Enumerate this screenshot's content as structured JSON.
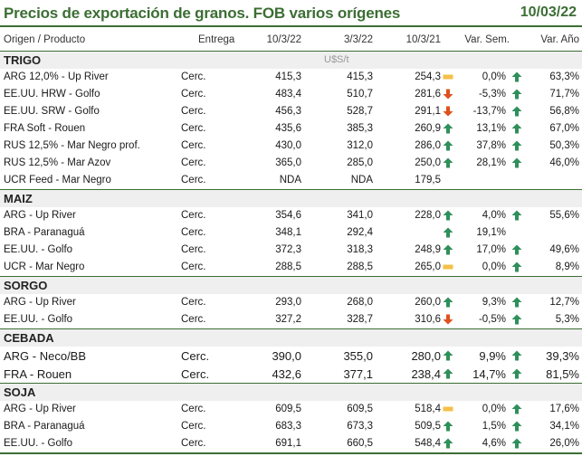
{
  "header": {
    "title": "Precios de exportación de granos. FOB varios orígenes",
    "date": "10/03/22"
  },
  "columns": {
    "origen": "Origen / Producto",
    "entrega": "Entrega",
    "c1": "10/3/22",
    "c2": "3/3/22",
    "c3": "10/3/21",
    "var_sem": "Var. Sem.",
    "var_anio": "Var. Año"
  },
  "colors": {
    "green": "#3c6e34",
    "up": "#2f8f5a",
    "down": "#e0501c",
    "flat": "#f5c04a"
  },
  "sections": [
    {
      "name": "TRIGO",
      "unit": "U$S/t",
      "rows": [
        {
          "name": "ARG 12,0% - Up River",
          "entrega": "Cerc.",
          "v1": "415,3",
          "v2": "415,3",
          "v3": "254,3",
          "i1": "flat",
          "s": "0,0%",
          "i2": "up",
          "a": "63,3%"
        },
        {
          "name": "EE.UU. HRW - Golfo",
          "entrega": "Cerc.",
          "v1": "483,4",
          "v2": "510,7",
          "v3": "281,6",
          "i1": "down",
          "s": "-5,3%",
          "i2": "up",
          "a": "71,7%"
        },
        {
          "name": "EE.UU. SRW - Golfo",
          "entrega": "Cerc.",
          "v1": "456,3",
          "v2": "528,7",
          "v3": "291,1",
          "i1": "down",
          "s": "-13,7%",
          "i2": "up",
          "a": "56,8%"
        },
        {
          "name": "FRA Soft - Rouen",
          "entrega": "Cerc.",
          "v1": "435,6",
          "v2": "385,3",
          "v3": "260,9",
          "i1": "up",
          "s": "13,1%",
          "i2": "up",
          "a": "67,0%"
        },
        {
          "name": "RUS 12,5% - Mar Negro prof.",
          "entrega": "Cerc.",
          "v1": "430,0",
          "v2": "312,0",
          "v3": "286,0",
          "i1": "up",
          "s": "37,8%",
          "i2": "up",
          "a": "50,3%"
        },
        {
          "name": "RUS 12,5% - Mar Azov",
          "entrega": "Cerc.",
          "v1": "365,0",
          "v2": "285,0",
          "v3": "250,0",
          "i1": "up",
          "s": "28,1%",
          "i2": "up",
          "a": "46,0%"
        },
        {
          "name": "UCR Feed - Mar Negro",
          "entrega": "Cerc.",
          "v1": "NDA",
          "v2": "NDA",
          "v3": "179,5",
          "i1": "",
          "s": "",
          "i2": "",
          "a": ""
        }
      ]
    },
    {
      "name": "MAIZ",
      "unit": "",
      "rows": [
        {
          "name": "ARG - Up River",
          "entrega": "Cerc.",
          "v1": "354,6",
          "v2": "341,0",
          "v3": "228,0",
          "i1": "up",
          "s": "4,0%",
          "i2": "up",
          "a": "55,6%"
        },
        {
          "name": "BRA - Paranaguá",
          "entrega": "Cerc.",
          "v1": "348,1",
          "v2": "292,4",
          "v3": "",
          "i1": "up",
          "s": "19,1%",
          "i2": "",
          "a": ""
        },
        {
          "name": "EE.UU. - Golfo",
          "entrega": "Cerc.",
          "v1": "372,3",
          "v2": "318,3",
          "v3": "248,9",
          "i1": "up",
          "s": "17,0%",
          "i2": "up",
          "a": "49,6%"
        },
        {
          "name": "UCR - Mar Negro",
          "entrega": "Cerc.",
          "v1": "288,5",
          "v2": "288,5",
          "v3": "265,0",
          "i1": "flat",
          "s": "0,0%",
          "i2": "up",
          "a": "8,9%"
        }
      ]
    },
    {
      "name": "SORGO",
      "unit": "",
      "rows": [
        {
          "name": "ARG - Up River",
          "entrega": "Cerc.",
          "v1": "293,0",
          "v2": "268,0",
          "v3": "260,0",
          "i1": "up",
          "s": "9,3%",
          "i2": "up",
          "a": "12,7%"
        },
        {
          "name": "EE.UU. - Golfo",
          "entrega": "Cerc.",
          "v1": "327,2",
          "v2": "328,7",
          "v3": "310,6",
          "i1": "down",
          "s": "-0,5%",
          "i2": "up",
          "a": "5,3%"
        }
      ]
    },
    {
      "name": "CEBADA",
      "unit": "",
      "big": true,
      "rows": [
        {
          "name": "ARG - Neco/BB",
          "entrega": "Cerc.",
          "v1": "390,0",
          "v2": "355,0",
          "v3": "280,0",
          "i1": "up",
          "s": "9,9%",
          "i2": "up",
          "a": "39,3%"
        },
        {
          "name": "FRA - Rouen",
          "entrega": "Cerc.",
          "v1": "432,6",
          "v2": "377,1",
          "v3": "238,4",
          "i1": "up",
          "s": "14,7%",
          "i2": "up",
          "a": "81,5%"
        }
      ]
    },
    {
      "name": "SOJA",
      "unit": "",
      "rows": [
        {
          "name": "ARG - Up River",
          "entrega": "Cerc.",
          "v1": "609,5",
          "v2": "609,5",
          "v3": "518,4",
          "i1": "flat",
          "s": "0,0%",
          "i2": "up",
          "a": "17,6%"
        },
        {
          "name": "BRA - Paranaguá",
          "entrega": "Cerc.",
          "v1": "683,3",
          "v2": "673,3",
          "v3": "509,5",
          "i1": "up",
          "s": "1,5%",
          "i2": "up",
          "a": "34,1%"
        },
        {
          "name": "EE.UU. - Golfo",
          "entrega": "Cerc.",
          "v1": "691,1",
          "v2": "660,5",
          "v3": "548,4",
          "i1": "up",
          "s": "4,6%",
          "i2": "up",
          "a": "26,0%"
        }
      ]
    }
  ]
}
